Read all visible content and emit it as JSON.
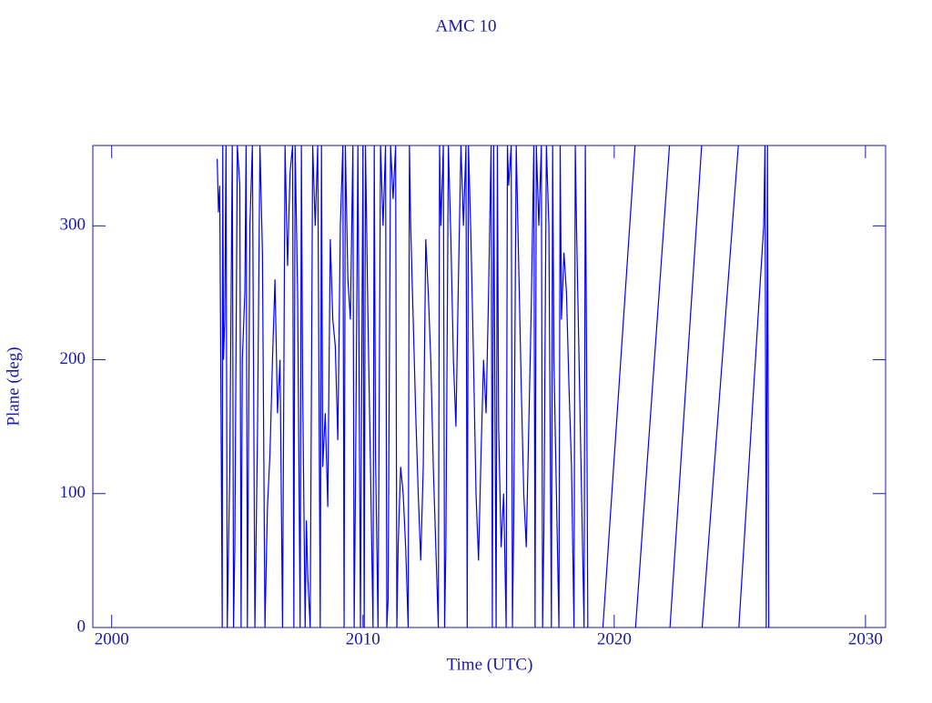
{
  "chart_data": {
    "type": "line",
    "title": "AMC 10",
    "xlabel": "Time (UTC)",
    "ylabel": "Plane (deg)",
    "xlim": [
      1999.25,
      2030.8
    ],
    "ylim": [
      0,
      360
    ],
    "xticks": [
      2000,
      2010,
      2020,
      2030
    ],
    "yticks": [
      0,
      100,
      200,
      300
    ],
    "x": [
      2004.2,
      2004.25,
      2004.3,
      2004.4,
      2004.42,
      2004.45,
      2004.5,
      2004.55,
      2004.6,
      2004.7,
      2004.8,
      2004.85,
      2004.9,
      2005.0,
      2005.1,
      2005.15,
      2005.2,
      2005.3,
      2005.35,
      2005.4,
      2005.5,
      2005.6,
      2005.7,
      2005.8,
      2005.9,
      2006.0,
      2006.1,
      2006.2,
      2006.3,
      2006.4,
      2006.5,
      2006.6,
      2006.7,
      2006.8,
      2006.9,
      2007.0,
      2007.1,
      2007.2,
      2007.25,
      2007.3,
      2007.4,
      2007.5,
      2007.55,
      2007.6,
      2007.7,
      2007.75,
      2007.8,
      2007.9,
      2008.0,
      2008.1,
      2008.2,
      2008.3,
      2008.35,
      2008.4,
      2008.5,
      2008.6,
      2008.7,
      2008.8,
      2008.9,
      2009.0,
      2009.1,
      2009.2,
      2009.25,
      2009.3,
      2009.4,
      2009.5,
      2009.6,
      2009.65,
      2009.7,
      2009.8,
      2009.9,
      2010.0,
      2010.05,
      2010.1,
      2010.2,
      2010.3,
      2010.4,
      2010.45,
      2010.5,
      2010.6,
      2010.7,
      2010.8,
      2010.9,
      2010.95,
      2011.0,
      2011.1,
      2011.2,
      2011.3,
      2011.35,
      2011.4,
      2011.5,
      2011.6,
      2011.7,
      2011.8,
      2011.85,
      2011.9,
      2012.0,
      2012.1,
      2012.2,
      2012.3,
      2012.4,
      2012.5,
      2012.6,
      2012.7,
      2012.8,
      2012.9,
      2013.0,
      2013.05,
      2013.1,
      2013.2,
      2013.25,
      2013.3,
      2013.4,
      2013.5,
      2013.6,
      2013.7,
      2013.8,
      2013.9,
      2014.0,
      2014.1,
      2014.15,
      2014.2,
      2014.3,
      2014.4,
      2014.5,
      2014.6,
      2014.7,
      2014.8,
      2014.9,
      2015.0,
      2015.1,
      2015.15,
      2015.2,
      2015.3,
      2015.35,
      2015.4,
      2015.5,
      2015.6,
      2015.7,
      2015.75,
      2015.8,
      2015.9,
      2015.95,
      2016.0,
      2016.1,
      2016.2,
      2016.3,
      2016.4,
      2016.5,
      2016.6,
      2016.7,
      2016.8,
      2016.85,
      2016.9,
      2017.0,
      2017.1,
      2017.15,
      2017.2,
      2017.3,
      2017.4,
      2017.5,
      2017.55,
      2017.6,
      2017.7,
      2017.8,
      2017.85,
      2017.9,
      2018.0,
      2018.1,
      2018.2,
      2018.3,
      2018.4,
      2018.45,
      2018.5,
      2018.6,
      2018.7,
      2018.8,
      2018.85,
      2018.9,
      2018.95,
      2019.0,
      2019.55,
      2020.83,
      2020.84,
      2020.85,
      2022.2,
      2022.21,
      2022.22,
      2023.48,
      2023.49,
      2023.5,
      2024.94,
      2024.95,
      2024.96,
      2025.95,
      2026.0,
      2026.05,
      2026.1,
      2026.15
    ],
    "series": [
      {
        "name": "Plane",
        "color": "#0000ff",
        "values": [
          350,
          310,
          330,
          0,
          360,
          200,
          230,
          360,
          0,
          120,
          360,
          0,
          60,
          360,
          330,
          0,
          200,
          250,
          360,
          0,
          300,
          360,
          0,
          140,
          360,
          280,
          0,
          90,
          130,
          200,
          260,
          160,
          200,
          0,
          360,
          270,
          340,
          360,
          0,
          360,
          250,
          0,
          360,
          180,
          0,
          80,
          40,
          0,
          360,
          300,
          360,
          0,
          360,
          120,
          160,
          90,
          290,
          230,
          210,
          140,
          300,
          360,
          0,
          360,
          260,
          230,
          360,
          0,
          100,
          360,
          0,
          360,
          0,
          360,
          230,
          120,
          0,
          360,
          130,
          0,
          360,
          300,
          360,
          0,
          20,
          360,
          320,
          360,
          0,
          60,
          120,
          100,
          60,
          0,
          360,
          300,
          230,
          160,
          100,
          50,
          120,
          290,
          250,
          200,
          120,
          60,
          0,
          360,
          300,
          360,
          0,
          60,
          360,
          290,
          200,
          150,
          260,
          360,
          300,
          360,
          0,
          360,
          290,
          200,
          100,
          50,
          130,
          200,
          160,
          250,
          360,
          0,
          360,
          0,
          360,
          150,
          60,
          100,
          0,
          360,
          330,
          360,
          0,
          80,
          360,
          270,
          180,
          100,
          60,
          150,
          240,
          360,
          0,
          360,
          300,
          360,
          0,
          70,
          360,
          300,
          0,
          360,
          200,
          100,
          0,
          360,
          230,
          280,
          250,
          180,
          120,
          0,
          360,
          300,
          200,
          100,
          0,
          360,
          200,
          0,
          null,
          0,
          360,
          null,
          0,
          360,
          null,
          0,
          360,
          null,
          0,
          360,
          null,
          0,
          300,
          360,
          0,
          360,
          0
        ]
      }
    ]
  }
}
